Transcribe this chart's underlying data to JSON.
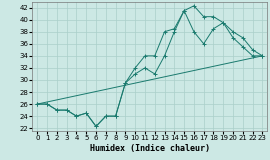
{
  "xlabel": "Humidex (Indice chaleur)",
  "bg_color": "#cce8e4",
  "line_color": "#1a7a6e",
  "grid_color": "#aacfca",
  "xlim": [
    -0.5,
    23.5
  ],
  "ylim": [
    21.5,
    43
  ],
  "yticks": [
    22,
    24,
    26,
    28,
    30,
    32,
    34,
    36,
    38,
    40,
    42
  ],
  "xticks": [
    0,
    1,
    2,
    3,
    4,
    5,
    6,
    7,
    8,
    9,
    10,
    11,
    12,
    13,
    14,
    15,
    16,
    17,
    18,
    19,
    20,
    21,
    22,
    23
  ],
  "line1_x": [
    0,
    1,
    2,
    3,
    4,
    5,
    6,
    7,
    8,
    9,
    10,
    11,
    12,
    13,
    14,
    15,
    16,
    17,
    18,
    19,
    20,
    21,
    22,
    23
  ],
  "line1_y": [
    26,
    26,
    25,
    25,
    24,
    24.5,
    22.3,
    24,
    24,
    29.5,
    31,
    32,
    31,
    34,
    38,
    41.5,
    42.3,
    40.5,
    40.5,
    39.5,
    38,
    37,
    35,
    34
  ],
  "line2_x": [
    0,
    1,
    2,
    3,
    4,
    5,
    6,
    7,
    8,
    9,
    10,
    11,
    12,
    13,
    14,
    15,
    16,
    17,
    18,
    19,
    20,
    21,
    22,
    23
  ],
  "line2_y": [
    26,
    26,
    25,
    25,
    24,
    24.5,
    22.3,
    24,
    24,
    29.5,
    32,
    34,
    34,
    38,
    38.5,
    41.5,
    38,
    36,
    38.5,
    39.5,
    37,
    35.5,
    34,
    34
  ],
  "line3_x": [
    0,
    23
  ],
  "line3_y": [
    26,
    34
  ],
  "xlabel_fontsize": 6,
  "tick_fontsize": 5
}
